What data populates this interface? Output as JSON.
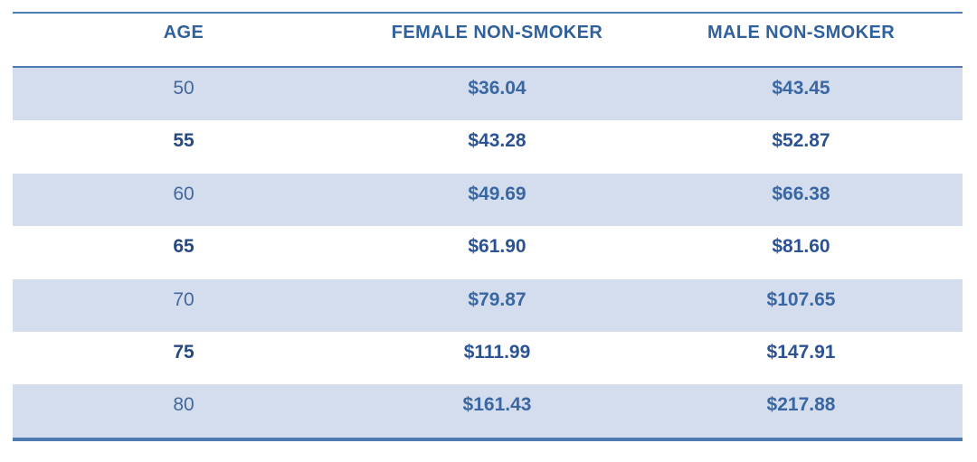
{
  "table": {
    "columns": [
      {
        "label": "AGE"
      },
      {
        "label": "FEMALE NON-SMOKER"
      },
      {
        "label": "MALE NON-SMOKER"
      }
    ],
    "rows": [
      {
        "age": "50",
        "female": "$36.04",
        "male": "$43.45",
        "shaded": true
      },
      {
        "age": "55",
        "female": "$43.28",
        "male": "$52.87",
        "shaded": false
      },
      {
        "age": "60",
        "female": "$49.69",
        "male": "$66.38",
        "shaded": true
      },
      {
        "age": "65",
        "female": "$61.90",
        "male": "$81.60",
        "shaded": false
      },
      {
        "age": "70",
        "female": "$79.87",
        "male": "$107.65",
        "shaded": true
      },
      {
        "age": "75",
        "female": "$111.99",
        "male": "$147.91",
        "shaded": false
      },
      {
        "age": "80",
        "female": "$161.43",
        "male": "$217.88",
        "shaded": true
      }
    ],
    "colors": {
      "border_blue": "#4e7cb2",
      "band_fill": "#d3ddee",
      "header_text": "#31619c",
      "value_text_plain_row": "#2c5391",
      "value_text_shaded_row": "#3a67a1",
      "age_text_shaded_row": "#44689a",
      "age_text_plain_row": "#27497e"
    }
  },
  "chart_data": {
    "type": "table",
    "title": "",
    "columns": [
      "AGE",
      "FEMALE NON-SMOKER",
      "MALE NON-SMOKER"
    ],
    "rows": [
      [
        50,
        36.04,
        43.45
      ],
      [
        55,
        43.28,
        52.87
      ],
      [
        60,
        49.69,
        66.38
      ],
      [
        65,
        61.9,
        81.6
      ],
      [
        70,
        79.87,
        107.65
      ],
      [
        75,
        111.99,
        147.91
      ],
      [
        80,
        161.43,
        217.88
      ]
    ],
    "units": "USD",
    "banded_rows": true,
    "grid": "horizontal-borders-only",
    "notes": "Rows for ages 50/60/70/80 have light blue banding; dollar values are bold"
  }
}
